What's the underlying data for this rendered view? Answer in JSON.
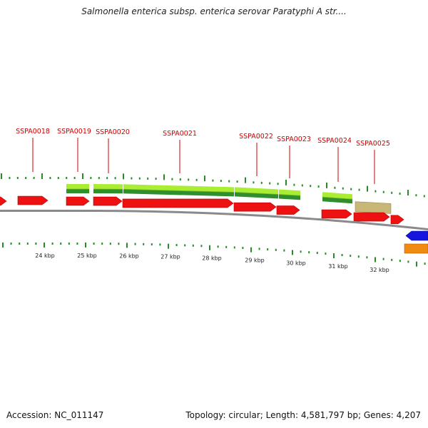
{
  "title": "Salmonella enterica subsp. enterica serovar Paratyphi A str....",
  "footer": {
    "accession": "Accession: NC_011147",
    "topology": "Topology: circular; Length: 4,581,797 bp; Genes: 4,207"
  },
  "colors": {
    "cds": "#ee1111",
    "cds_blue": "#1515dd",
    "orange": "#f08a10",
    "green_light": "#aaee33",
    "green_dark": "#2f8f2f",
    "tan": "#c8b878",
    "backbone": "#8a8a8a",
    "tick": "#2a8a2a",
    "label": "#cc0000"
  },
  "gene_labels": [
    {
      "name": "SSPA0018"
    },
    {
      "name": "SSPA0019"
    },
    {
      "name": "SSPA0020"
    },
    {
      "name": "SSPA0021"
    },
    {
      "name": "SSPA0022"
    },
    {
      "name": "SSPA0023"
    },
    {
      "name": "SSPA0024"
    },
    {
      "name": "SSPA0025"
    }
  ],
  "scale_labels": [
    "24 kbp",
    "25 kbp",
    "26 kbp",
    "27 kbp",
    "28 kbp",
    "29 kbp",
    "30 kbp",
    "31 kbp",
    "32 kbp"
  ]
}
